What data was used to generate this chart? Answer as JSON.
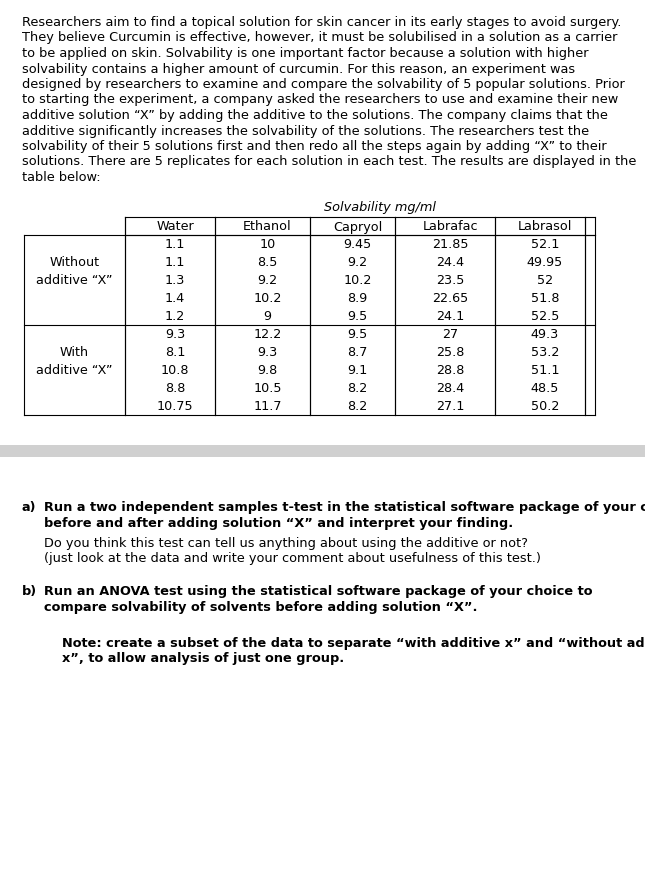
{
  "intro_text": "Researchers aim to find a topical solution for skin cancer in its early stages to avoid surgery. They believe Curcumin is effective, however, it must be solubilised in a solution as a carrier to be applied on skin. Solvability is one important factor because a solution with higher solvability contains a higher amount of curcumin. For this reason, an experiment was designed by researchers to examine and compare the solvability of 5 popular solutions. Prior to starting the experiment, a company asked the researchers to use and examine their new additive solution “X” by adding the additive to the solutions. The company claims that the additive significantly increases the solvability of the solutions. The researchers test the solvability of their 5 solutions first and then redo all the steps again by adding “X” to their solutions. There are 5 replicates for each solution in each test. The results are displayed in the table below:",
  "table_header_top": "Solvability mg/ml",
  "col_headers": [
    "Water",
    "Ethanol",
    "Capryol",
    "Labrafac",
    "Labrasol"
  ],
  "row_group_labels": [
    "Without\nadditive “X”",
    "With\nadditive “X”"
  ],
  "without_data": [
    [
      1.1,
      10,
      9.45,
      21.85,
      52.1
    ],
    [
      1.1,
      8.5,
      9.2,
      24.4,
      49.95
    ],
    [
      1.3,
      9.2,
      10.2,
      23.5,
      52
    ],
    [
      1.4,
      10.2,
      8.9,
      22.65,
      51.8
    ],
    [
      1.2,
      9,
      9.5,
      24.1,
      52.5
    ]
  ],
  "with_data": [
    [
      9.3,
      12.2,
      9.5,
      27,
      49.3
    ],
    [
      8.1,
      9.3,
      8.7,
      25.8,
      53.2
    ],
    [
      10.8,
      9.8,
      9.1,
      28.8,
      51.1
    ],
    [
      8.8,
      10.5,
      8.2,
      28.4,
      48.5
    ],
    [
      10.75,
      11.7,
      8.2,
      27.1,
      50.2
    ]
  ],
  "question_a_label": "a)",
  "question_a_bold": "Run a two independent samples t-test in the statistical software package of your choice for before and after adding solution “X” and interpret your finding.",
  "question_a_normal": "Do you think this test can tell us anything about using the additive or not?\n(just look at the data and write your comment about usefulness of this test.)",
  "question_b_label": "b)",
  "question_b_bold": "Run an ANOVA test using the statistical software package of your choice to compare solvability of solvents before adding solution “X”.",
  "question_note_bold": "Note: create a subset of the data to separate “with additive x” and “without additive x”, to allow analysis of just one group.",
  "bg_color": "#ffffff",
  "text_color": "#000000",
  "separator_color": "#cccccc",
  "font_size_body": 9.5,
  "font_size_table": 9.5
}
